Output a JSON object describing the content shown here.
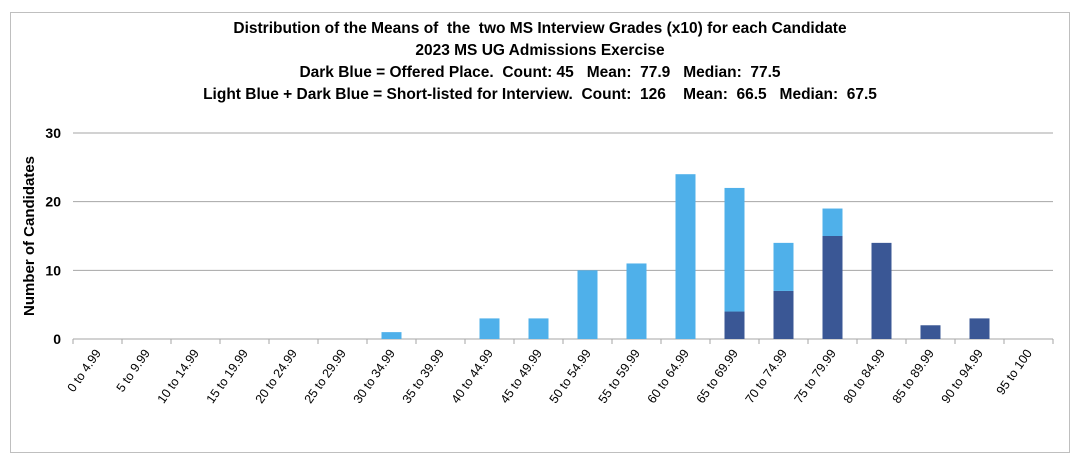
{
  "chart_data": {
    "type": "bar",
    "stacked": true,
    "title_lines": [
      "Distribution of the Means of  the  two MS Interview Grades (x10) for each Candidate",
      "2023 MS UG Admissions Exercise",
      "Dark Blue = Offered Place.  Count: 45   Mean:  77.9   Median:  77.5",
      "Light Blue + Dark Blue = Short-listed for Interview.  Count:  126    Mean:  66.5   Median:  67.5"
    ],
    "xlabel": "",
    "ylabel": "Number of Candidates",
    "ylim": [
      0,
      30
    ],
    "yticks": [
      "0",
      "10",
      "20",
      "30"
    ],
    "grid": true,
    "categories": [
      "0 to 4.99",
      "5 to 9.99",
      "10 to 14.99",
      "15 to 19.99",
      "20 to 24.99",
      "25 to 29.99",
      "30 to 34.99",
      "35 to 39.99",
      "40 to 44.99",
      "45 to 49.99",
      "50 to 54.99",
      "55 to 59.99",
      "60 to 64.99",
      "65 to 69.99",
      "70 to 74.99",
      "75 to 79.99",
      "80 to 84.99",
      "85 to 89.99",
      "90 to 94.99",
      "95 to 100"
    ],
    "series": [
      {
        "key": "offered",
        "color": "#3a5795",
        "values": [
          0,
          0,
          0,
          0,
          0,
          0,
          0,
          0,
          0,
          0,
          0,
          0,
          0,
          4,
          7,
          15,
          14,
          2,
          3,
          0
        ]
      },
      {
        "key": "shortlisted_not_offered",
        "color": "#4fb0ea",
        "values": [
          0,
          0,
          0,
          0,
          0,
          0,
          1,
          0,
          3,
          3,
          10,
          11,
          24,
          18,
          7,
          4,
          0,
          0,
          0,
          0
        ]
      }
    ],
    "gridline_color": "#a6a6a6"
  }
}
